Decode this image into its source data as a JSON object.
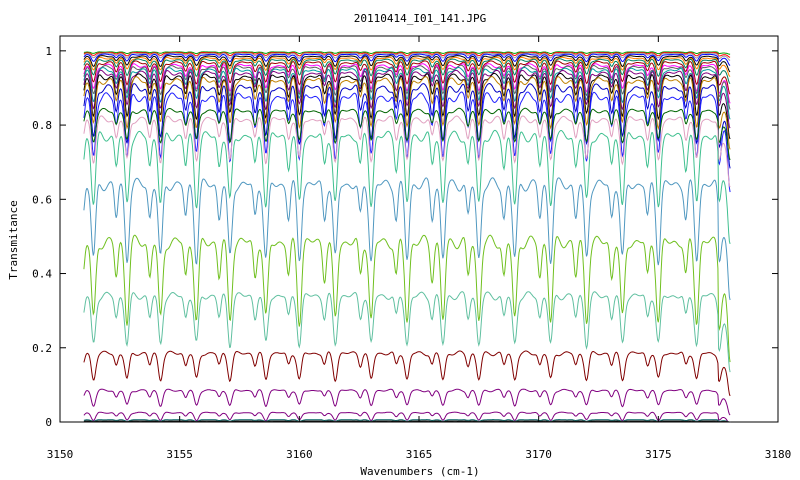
{
  "chart_data": {
    "type": "line",
    "title": "20110414_I01_141.JPG",
    "xlabel": "Wavenumbers (cm-1)",
    "ylabel": "Transmitance",
    "xlim": [
      3150,
      3180
    ],
    "ylim": [
      0,
      1.04
    ],
    "x_ticks": [
      "3150",
      "3155",
      "3160",
      "3165",
      "3170",
      "3175",
      "3180"
    ],
    "y_ticks": [
      "0",
      "0.2",
      "0.4",
      "0.6",
      "0.8",
      "1"
    ],
    "x_range": [
      3151,
      3178
    ],
    "absorption_lines": [
      3151.4,
      3152.8,
      3154.2,
      3155.7,
      3157.1,
      3158.6,
      3160.0,
      3161.5,
      3163.0,
      3164.5,
      3166.0,
      3167.5,
      3169.0,
      3170.5,
      3172.0,
      3173.5,
      3175.0,
      3176.6,
      3178.0
    ],
    "grid": false,
    "legend": "none",
    "series": [
      {
        "baseline": 0.997,
        "depth": 0.004,
        "color": "#00a000"
      },
      {
        "baseline": 0.995,
        "depth": 0.008,
        "color": "#ff0000"
      },
      {
        "baseline": 0.993,
        "depth": 0.012,
        "color": "#a0a0a0"
      },
      {
        "baseline": 0.99,
        "depth": 0.018,
        "color": "#0000ff"
      },
      {
        "baseline": 0.985,
        "depth": 0.025,
        "color": "#000000"
      },
      {
        "baseline": 0.98,
        "depth": 0.03,
        "color": "#ff8000"
      },
      {
        "baseline": 0.975,
        "depth": 0.04,
        "color": "#008060"
      },
      {
        "baseline": 0.968,
        "depth": 0.055,
        "color": "#a00000"
      },
      {
        "baseline": 0.96,
        "depth": 0.065,
        "color": "#ff00ff"
      },
      {
        "baseline": 0.955,
        "depth": 0.07,
        "color": "#606060"
      },
      {
        "baseline": 0.948,
        "depth": 0.08,
        "color": "#00a0a0"
      },
      {
        "baseline": 0.94,
        "depth": 0.09,
        "color": "#800080"
      },
      {
        "baseline": 0.93,
        "depth": 0.105,
        "color": "#000000"
      },
      {
        "baseline": 0.92,
        "depth": 0.12,
        "color": "#c08000"
      },
      {
        "baseline": 0.9,
        "depth": 0.14,
        "color": "#0000c0"
      },
      {
        "baseline": 0.875,
        "depth": 0.16,
        "color": "#2020ff"
      },
      {
        "baseline": 0.838,
        "depth": 0.08,
        "color": "#006400"
      },
      {
        "baseline": 0.815,
        "depth": 0.11,
        "color": "#e0a0c0"
      },
      {
        "baseline": 0.77,
        "depth": 0.18,
        "color": "#40c090"
      },
      {
        "baseline": 0.64,
        "depth": 0.2,
        "color": "#5098c0"
      },
      {
        "baseline": 0.485,
        "depth": 0.21,
        "color": "#70c020"
      },
      {
        "baseline": 0.34,
        "depth": 0.13,
        "color": "#60c0a0"
      },
      {
        "baseline": 0.185,
        "depth": 0.07,
        "color": "#800000"
      },
      {
        "baseline": 0.085,
        "depth": 0.04,
        "color": "#800080"
      },
      {
        "baseline": 0.025,
        "depth": 0.02,
        "color": "#800080"
      },
      {
        "baseline": 0.006,
        "depth": 0.004,
        "color": "#006060"
      },
      {
        "baseline": 0.003,
        "depth": 0.002,
        "color": "#404040"
      },
      {
        "baseline": 0.001,
        "depth": 0.001,
        "color": "#000000"
      }
    ]
  }
}
